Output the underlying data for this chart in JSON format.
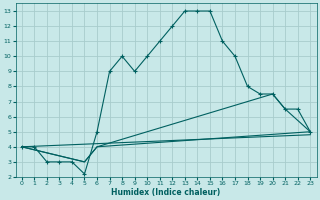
{
  "xlabel": "Humidex (Indice chaleur)",
  "xlim": [
    -0.5,
    23.5
  ],
  "ylim": [
    2,
    13.5
  ],
  "xticks": [
    0,
    1,
    2,
    3,
    4,
    5,
    6,
    7,
    8,
    9,
    10,
    11,
    12,
    13,
    14,
    15,
    16,
    17,
    18,
    19,
    20,
    21,
    22,
    23
  ],
  "yticks": [
    2,
    3,
    4,
    5,
    6,
    7,
    8,
    9,
    10,
    11,
    12,
    13
  ],
  "bg_color": "#c8e8e8",
  "grid_color": "#a8cccc",
  "line_color": "#006060",
  "curve1_x": [
    0,
    1,
    2,
    3,
    4,
    5,
    6,
    7,
    8,
    9,
    10,
    11,
    12,
    13,
    14,
    15,
    16,
    17,
    18,
    19,
    20,
    21,
    22,
    23
  ],
  "curve1_y": [
    4,
    4,
    3,
    3,
    3,
    2.2,
    5,
    9,
    10,
    9,
    10,
    11,
    12,
    13,
    13,
    13,
    11,
    10,
    8,
    7.5,
    7.5,
    6.5,
    6.5,
    5
  ],
  "curve2_x": [
    0,
    5,
    6,
    23
  ],
  "curve2_y": [
    4,
    3,
    4,
    5
  ],
  "curve3_x": [
    0,
    23
  ],
  "curve3_y": [
    4,
    4.8
  ],
  "curve4_x": [
    0,
    5,
    6,
    20,
    21,
    23
  ],
  "curve4_y": [
    4,
    3,
    4,
    7.5,
    6.5,
    5
  ]
}
